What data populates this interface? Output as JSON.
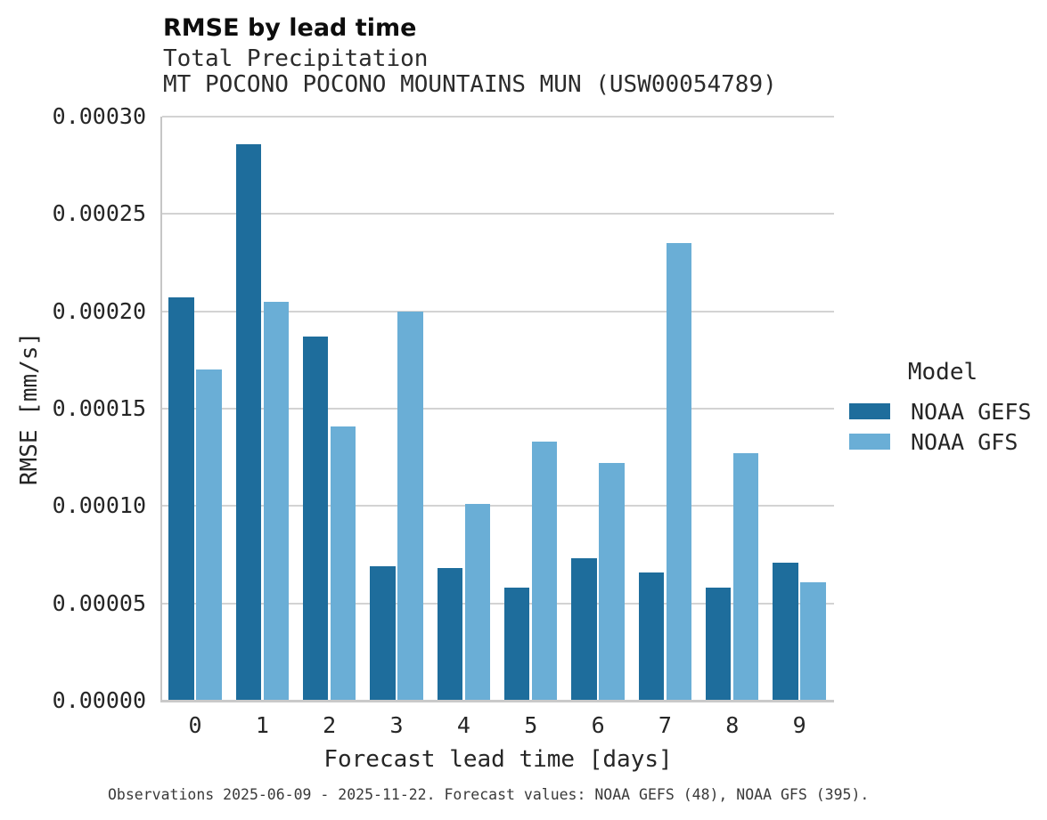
{
  "title": "RMSE by lead time",
  "subtitle": "Total Precipitation",
  "station_line": "MT POCONO POCONO MOUNTAINS MUN (USW00054789)",
  "footer": "Observations 2025-06-09 - 2025-11-22. Forecast values: NOAA GEFS (48), NOAA GFS (395).",
  "legend": {
    "title": "Model",
    "entries": [
      {
        "label": "NOAA GEFS",
        "color": "#1e6d9c"
      },
      {
        "label": "NOAA GFS",
        "color": "#6aaed6"
      }
    ]
  },
  "colors": {
    "gefs_bar": "#1e6d9c",
    "gfs_bar": "#6aaed6",
    "gridline": "#d3d3d3",
    "spine": "#c6c6c6",
    "text": "#262626"
  },
  "chart_data": {
    "type": "bar",
    "title": "RMSE by lead time",
    "subtitle": "Total Precipitation",
    "station": "MT POCONO POCONO MOUNTAINS MUN (USW00054789)",
    "xlabel": "Forecast lead time [days]",
    "ylabel": "RMSE [mm/s]",
    "categories": [
      "0",
      "1",
      "2",
      "3",
      "4",
      "5",
      "6",
      "7",
      "8",
      "9"
    ],
    "series": [
      {
        "name": "NOAA GEFS",
        "color": "#1e6d9c",
        "values": [
          0.000207,
          0.000286,
          0.000187,
          6.9e-05,
          6.8e-05,
          5.8e-05,
          7.3e-05,
          6.6e-05,
          5.8e-05,
          7.1e-05
        ]
      },
      {
        "name": "NOAA GFS",
        "color": "#6aaed6",
        "values": [
          0.00017,
          0.000205,
          0.000141,
          0.0002,
          0.000101,
          0.000133,
          0.000122,
          0.000235,
          0.000127,
          6.1e-05
        ]
      }
    ],
    "ylim": [
      0,
      0.0003
    ],
    "yticks": [
      0,
      5e-05,
      0.0001,
      0.00015,
      0.0002,
      0.00025,
      0.0003
    ],
    "ytick_labels": [
      "0.00000",
      "0.00005",
      "0.00010",
      "0.00015",
      "0.00020",
      "0.00025",
      "0.00030"
    ],
    "grid": true,
    "legend_position": "center-right",
    "legend_title": "Model"
  }
}
